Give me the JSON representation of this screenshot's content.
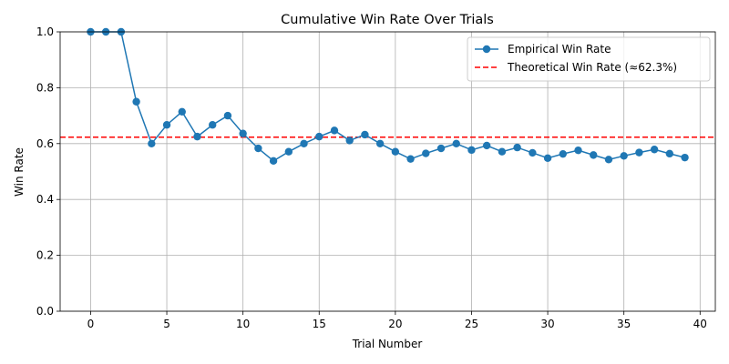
{
  "chart_data": {
    "type": "line",
    "title": "Cumulative Win Rate Over Trials",
    "xlabel": "Trial Number",
    "ylabel": "Win Rate",
    "xlim": [
      -2,
      41
    ],
    "ylim": [
      0,
      1
    ],
    "xticks": [
      0,
      5,
      10,
      15,
      20,
      25,
      30,
      35,
      40
    ],
    "yticks": [
      0.0,
      0.2,
      0.4,
      0.6,
      0.8,
      1.0
    ],
    "grid": true,
    "legend_position": "top-right",
    "series": [
      {
        "name": "Empirical Win Rate",
        "color": "#1f77b4",
        "marker": "circle",
        "x": [
          0,
          1,
          2,
          3,
          4,
          5,
          6,
          7,
          8,
          9,
          10,
          11,
          12,
          13,
          14,
          15,
          16,
          17,
          18,
          19,
          20,
          21,
          22,
          23,
          24,
          25,
          26,
          27,
          28,
          29,
          30,
          31,
          32,
          33,
          34,
          35,
          36,
          37,
          38,
          39
        ],
        "y": [
          1.0,
          1.0,
          1.0,
          0.75,
          0.6,
          0.667,
          0.714,
          0.625,
          0.667,
          0.7,
          0.636,
          0.583,
          0.538,
          0.571,
          0.6,
          0.625,
          0.647,
          0.611,
          0.632,
          0.6,
          0.571,
          0.545,
          0.565,
          0.583,
          0.6,
          0.577,
          0.593,
          0.571,
          0.586,
          0.567,
          0.548,
          0.563,
          0.576,
          0.559,
          0.543,
          0.556,
          0.568,
          0.579,
          0.564,
          0.55
        ]
      }
    ],
    "reference_lines": [
      {
        "name": "Theoretical Win Rate (≈62.3%)",
        "orientation": "horizontal",
        "y": 0.623,
        "color": "#ff0000",
        "style": "dashed"
      }
    ]
  }
}
